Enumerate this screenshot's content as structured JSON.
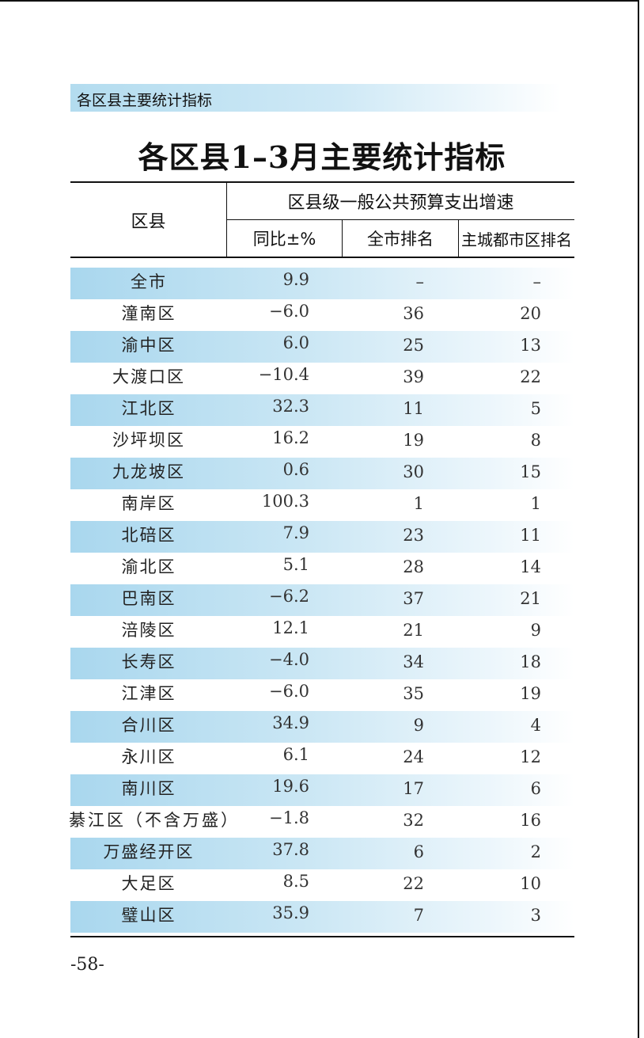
{
  "section_banner": "各区县主要统计指标",
  "title": "各区县1–3月主要统计指标",
  "header": {
    "district": "区县",
    "group": "区县级一般公共预算支出增速",
    "yoy": "同比±%",
    "city_rank": "全市排名",
    "main_rank": "主城都市区排名"
  },
  "rows": [
    {
      "name": "全市",
      "yoy": "9.9",
      "city_rank": "–",
      "main_rank": "–",
      "shaded": true
    },
    {
      "name": "潼南区",
      "yoy": "−6.0",
      "city_rank": "36",
      "main_rank": "20",
      "shaded": false
    },
    {
      "name": "渝中区",
      "yoy": "6.0",
      "city_rank": "25",
      "main_rank": "13",
      "shaded": true
    },
    {
      "name": "大渡口区",
      "yoy": "−10.4",
      "city_rank": "39",
      "main_rank": "22",
      "shaded": false
    },
    {
      "name": "江北区",
      "yoy": "32.3",
      "city_rank": "11",
      "main_rank": "5",
      "shaded": true
    },
    {
      "name": "沙坪坝区",
      "yoy": "16.2",
      "city_rank": "19",
      "main_rank": "8",
      "shaded": false
    },
    {
      "name": "九龙坡区",
      "yoy": "0.6",
      "city_rank": "30",
      "main_rank": "15",
      "shaded": true
    },
    {
      "name": "南岸区",
      "yoy": "100.3",
      "city_rank": "1",
      "main_rank": "1",
      "shaded": false
    },
    {
      "name": "北碚区",
      "yoy": "7.9",
      "city_rank": "23",
      "main_rank": "11",
      "shaded": true
    },
    {
      "name": "渝北区",
      "yoy": "5.1",
      "city_rank": "28",
      "main_rank": "14",
      "shaded": false
    },
    {
      "name": "巴南区",
      "yoy": "−6.2",
      "city_rank": "37",
      "main_rank": "21",
      "shaded": true
    },
    {
      "name": "涪陵区",
      "yoy": "12.1",
      "city_rank": "21",
      "main_rank": "9",
      "shaded": false
    },
    {
      "name": "长寿区",
      "yoy": "−4.0",
      "city_rank": "34",
      "main_rank": "18",
      "shaded": true
    },
    {
      "name": "江津区",
      "yoy": "−6.0",
      "city_rank": "35",
      "main_rank": "19",
      "shaded": false
    },
    {
      "name": "合川区",
      "yoy": "34.9",
      "city_rank": "9",
      "main_rank": "4",
      "shaded": true
    },
    {
      "name": "永川区",
      "yoy": "6.1",
      "city_rank": "24",
      "main_rank": "12",
      "shaded": false
    },
    {
      "name": "南川区",
      "yoy": "19.6",
      "city_rank": "17",
      "main_rank": "6",
      "shaded": true
    },
    {
      "name": "綦江区（不含万盛）",
      "yoy": "−1.8",
      "city_rank": "32",
      "main_rank": "16",
      "shaded": false
    },
    {
      "name": "万盛经开区",
      "yoy": "37.8",
      "city_rank": "6",
      "main_rank": "2",
      "shaded": true
    },
    {
      "name": "大足区",
      "yoy": "8.5",
      "city_rank": "22",
      "main_rank": "10",
      "shaded": false
    },
    {
      "name": "璧山区",
      "yoy": "35.9",
      "city_rank": "7",
      "main_rank": "3",
      "shaded": true
    }
  ],
  "page_number": "-58-"
}
